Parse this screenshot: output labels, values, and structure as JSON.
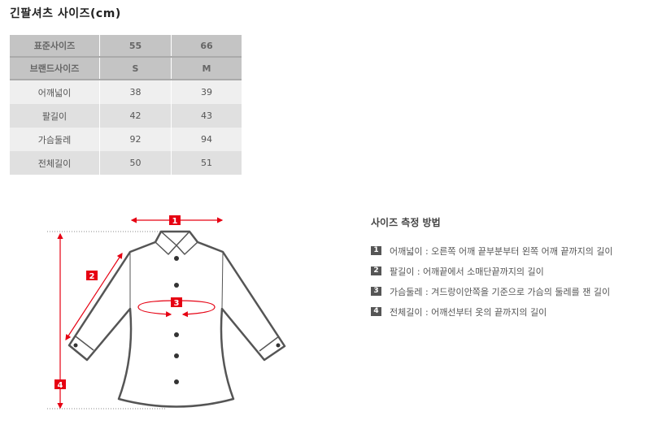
{
  "title": "긴팔셔츠 사이즈(cm)",
  "table": {
    "header_rows": [
      [
        "표준사이즈",
        "55",
        "66"
      ],
      [
        "브랜드사이즈",
        "S",
        "M"
      ]
    ],
    "rows": [
      [
        "어깨넓이",
        "38",
        "39"
      ],
      [
        "팔길이",
        "42",
        "43"
      ],
      [
        "가슴둘레",
        "92",
        "94"
      ],
      [
        "전체길이",
        "50",
        "51"
      ]
    ]
  },
  "diagram": {
    "labels": [
      "1",
      "2",
      "3",
      "4"
    ],
    "accent": "#e60012"
  },
  "howto": {
    "title": "사이즈 측정 방법",
    "items": [
      {
        "num": "1",
        "text": "어깨넓이 : 오른쪽 어깨 끝부분부터 왼쪽 어깨 끝까지의 길이"
      },
      {
        "num": "2",
        "text": "팔길이 : 어깨끝에서 소매단끝까지의 길이"
      },
      {
        "num": "3",
        "text": "가슴둘레 : 겨드랑이안쪽을 기준으로 가슴의 둘레를 잰 길이"
      },
      {
        "num": "4",
        "text": "전체길이 : 어깨선부터 옷의 끝까지의 길이"
      }
    ]
  }
}
